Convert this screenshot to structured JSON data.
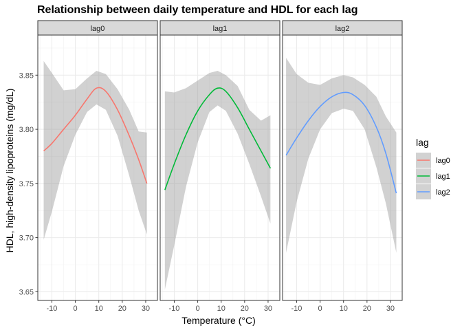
{
  "chart_data": {
    "type": "line",
    "title": "Relationship between daily temperature and HDL for each lag",
    "xlabel": "Temperature (°C)",
    "ylabel": "HDL, high-density lipoproteins (mg/dL)",
    "xlim": [
      -16,
      35
    ],
    "ylim": [
      3.642,
      3.887
    ],
    "x_ticks": [
      -10,
      0,
      10,
      20,
      30
    ],
    "y_ticks": [
      3.65,
      3.7,
      3.75,
      3.8,
      3.85
    ],
    "y_tick_labels": [
      "3.65",
      "3.70",
      "3.75",
      "3.80",
      "3.85"
    ],
    "grid": true,
    "legend": {
      "title": "lag",
      "position": "right"
    },
    "facets": [
      {
        "label": "lag0",
        "color": "#F8766D",
        "x": [
          -13.5,
          -10,
          -5,
          0,
          5,
          9,
          13,
          18,
          23,
          27,
          30.5
        ],
        "y": [
          3.78,
          3.787,
          3.8,
          3.813,
          3.828,
          3.838,
          3.835,
          3.818,
          3.794,
          3.772,
          3.75
        ],
        "lower": [
          3.698,
          3.724,
          3.766,
          3.795,
          3.816,
          3.823,
          3.818,
          3.794,
          3.757,
          3.725,
          3.703
        ],
        "upper": [
          3.863,
          3.852,
          3.836,
          3.837,
          3.847,
          3.854,
          3.851,
          3.837,
          3.818,
          3.798,
          3.797
        ]
      },
      {
        "label": "lag1",
        "color": "#00BA38",
        "x": [
          -14,
          -10,
          -5,
          0,
          5,
          8.5,
          12,
          17,
          22,
          27,
          31
        ],
        "y": [
          3.744,
          3.768,
          3.795,
          3.817,
          3.832,
          3.838,
          3.835,
          3.82,
          3.8,
          3.78,
          3.764
        ],
        "lower": [
          3.652,
          3.693,
          3.747,
          3.788,
          3.816,
          3.822,
          3.817,
          3.796,
          3.768,
          3.738,
          3.713
        ],
        "upper": [
          3.835,
          3.834,
          3.838,
          3.845,
          3.852,
          3.854,
          3.85,
          3.84,
          3.818,
          3.808,
          3.813
        ]
      },
      {
        "label": "lag2",
        "color": "#619CFF",
        "x": [
          -14.5,
          -10,
          -5,
          0,
          5,
          10,
          14,
          19,
          24,
          28,
          32.5
        ],
        "y": [
          3.776,
          3.792,
          3.808,
          3.821,
          3.83,
          3.834,
          3.832,
          3.822,
          3.802,
          3.778,
          3.741
        ],
        "lower": [
          3.686,
          3.733,
          3.773,
          3.8,
          3.815,
          3.819,
          3.817,
          3.8,
          3.765,
          3.732,
          3.686
        ],
        "upper": [
          3.866,
          3.851,
          3.843,
          3.841,
          3.847,
          3.85,
          3.848,
          3.841,
          3.83,
          3.812,
          3.797
        ]
      }
    ]
  }
}
